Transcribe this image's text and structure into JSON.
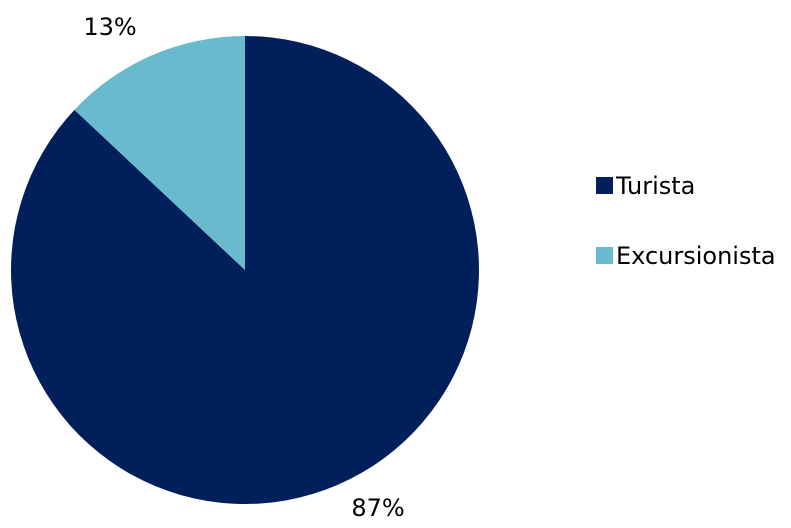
{
  "chart_data": {
    "type": "pie",
    "categories": [
      "Turista",
      "Excursionista"
    ],
    "values": [
      87,
      13
    ],
    "labels": [
      "87%",
      "13%"
    ],
    "colors": [
      "#011F5B",
      "#69B9CF"
    ],
    "legend_position": "right",
    "start_angle": "top",
    "direction": "clockwise"
  }
}
